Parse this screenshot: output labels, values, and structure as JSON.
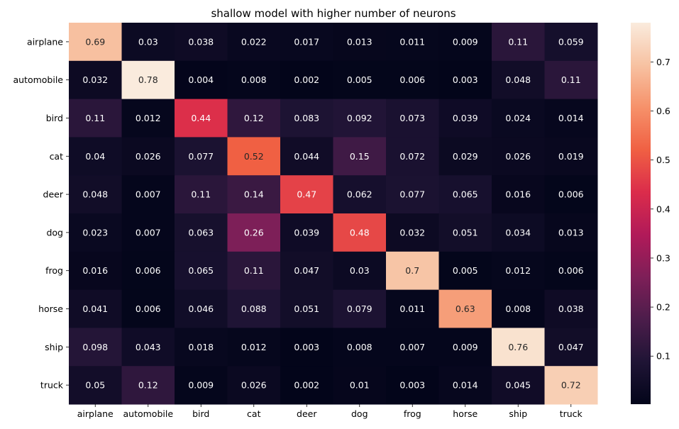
{
  "chart_data": {
    "type": "heatmap",
    "title": "shallow model with higher number of neurons",
    "xlabel": "",
    "ylabel": "",
    "x_categories": [
      "airplane",
      "automobile",
      "bird",
      "cat",
      "deer",
      "dog",
      "frog",
      "horse",
      "ship",
      "truck"
    ],
    "y_categories": [
      "airplane",
      "automobile",
      "bird",
      "cat",
      "deer",
      "dog",
      "frog",
      "horse",
      "ship",
      "truck"
    ],
    "values": [
      [
        0.69,
        0.03,
        0.038,
        0.022,
        0.017,
        0.013,
        0.011,
        0.009,
        0.11,
        0.059
      ],
      [
        0.032,
        0.78,
        0.004,
        0.008,
        0.002,
        0.005,
        0.006,
        0.003,
        0.048,
        0.11
      ],
      [
        0.11,
        0.012,
        0.44,
        0.12,
        0.083,
        0.092,
        0.073,
        0.039,
        0.024,
        0.014
      ],
      [
        0.04,
        0.026,
        0.077,
        0.52,
        0.044,
        0.15,
        0.072,
        0.029,
        0.026,
        0.019
      ],
      [
        0.048,
        0.007,
        0.11,
        0.14,
        0.47,
        0.062,
        0.077,
        0.065,
        0.016,
        0.006
      ],
      [
        0.023,
        0.007,
        0.063,
        0.26,
        0.039,
        0.48,
        0.032,
        0.051,
        0.034,
        0.013
      ],
      [
        0.016,
        0.006,
        0.065,
        0.11,
        0.047,
        0.03,
        0.7,
        0.005,
        0.012,
        0.006
      ],
      [
        0.041,
        0.006,
        0.046,
        0.088,
        0.051,
        0.079,
        0.011,
        0.63,
        0.008,
        0.038
      ],
      [
        0.098,
        0.043,
        0.018,
        0.012,
        0.003,
        0.008,
        0.007,
        0.009,
        0.76,
        0.047
      ],
      [
        0.05,
        0.12,
        0.009,
        0.026,
        0.002,
        0.01,
        0.003,
        0.014,
        0.045,
        0.72
      ]
    ],
    "value_labels": [
      [
        "0.69",
        "0.03",
        "0.038",
        "0.022",
        "0.017",
        "0.013",
        "0.011",
        "0.009",
        "0.11",
        "0.059"
      ],
      [
        "0.032",
        "0.78",
        "0.004",
        "0.008",
        "0.002",
        "0.005",
        "0.006",
        "0.003",
        "0.048",
        "0.11"
      ],
      [
        "0.11",
        "0.012",
        "0.44",
        "0.12",
        "0.083",
        "0.092",
        "0.073",
        "0.039",
        "0.024",
        "0.014"
      ],
      [
        "0.04",
        "0.026",
        "0.077",
        "0.52",
        "0.044",
        "0.15",
        "0.072",
        "0.029",
        "0.026",
        "0.019"
      ],
      [
        "0.048",
        "0.007",
        "0.11",
        "0.14",
        "0.47",
        "0.062",
        "0.077",
        "0.065",
        "0.016",
        "0.006"
      ],
      [
        "0.023",
        "0.007",
        "0.063",
        "0.26",
        "0.039",
        "0.48",
        "0.032",
        "0.051",
        "0.034",
        "0.013"
      ],
      [
        "0.016",
        "0.006",
        "0.065",
        "0.11",
        "0.047",
        "0.03",
        "0.7",
        "0.005",
        "0.012",
        "0.006"
      ],
      [
        "0.041",
        "0.006",
        "0.046",
        "0.088",
        "0.051",
        "0.079",
        "0.011",
        "0.63",
        "0.008",
        "0.038"
      ],
      [
        "0.098",
        "0.043",
        "0.018",
        "0.012",
        "0.003",
        "0.008",
        "0.007",
        "0.009",
        "0.76",
        "0.047"
      ],
      [
        "0.05",
        "0.12",
        "0.009",
        "0.026",
        "0.002",
        "0.01",
        "0.003",
        "0.014",
        "0.045",
        "0.72"
      ]
    ],
    "colorbar": {
      "vmin": 0.002,
      "vmax": 0.78,
      "ticks": [
        0.1,
        0.2,
        0.3,
        0.4,
        0.5,
        0.6,
        0.7
      ],
      "tick_labels": [
        "0.1",
        "0.2",
        "0.3",
        "0.4",
        "0.5",
        "0.6",
        "0.7"
      ],
      "colormap": "rocket",
      "colormap_stops": [
        "#03051a",
        "#1f1435",
        "#4c1d4b",
        "#7e1f58",
        "#b11a59",
        "#db2c4b",
        "#f06043",
        "#f6916a",
        "#f7c2a2",
        "#faebdd"
      ]
    },
    "grid": false,
    "legend": "colorbar-right"
  }
}
